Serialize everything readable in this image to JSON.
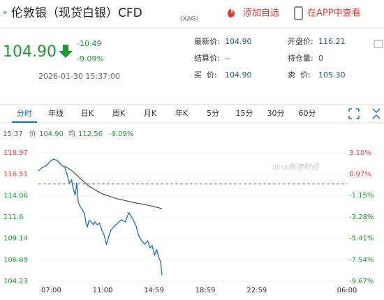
{
  "header": {
    "marker": "»",
    "title": "伦敦银（现货白银）CFD",
    "code": "(XAG)",
    "add_watch": "添加自选",
    "view_app": "在APP中查看"
  },
  "quote": {
    "price": "104.90",
    "change": "-10.49",
    "change_pct": "-9.09%",
    "datetime": "2026-01-30 15:37:00"
  },
  "stats": [
    {
      "label": "最新价:",
      "value": "104.90"
    },
    {
      "label": "开盘价:",
      "value": "116.21"
    },
    {
      "label": "结算价:",
      "value": "--"
    },
    {
      "label": "持仓量:",
      "value": "0"
    },
    {
      "label": "买  价:",
      "value": "104.90"
    },
    {
      "label": "卖  价:",
      "value": "105.30"
    }
  ],
  "tabs": [
    "分时",
    "年线",
    "日K",
    "周K",
    "月K",
    "年K",
    "5分",
    "15分",
    "30分",
    "60分"
  ],
  "info": {
    "time": "15:37",
    "price_label": "价",
    "price": "104.90",
    "avg_label": "均",
    "avg": "112.56",
    "pct": "-9.09%"
  },
  "chart_data": {
    "type": "line",
    "watermark": "sina新浪财经",
    "xlim": [
      -60,
      1380
    ],
    "xticks": [
      {
        "value": 0,
        "label": "07:00"
      },
      {
        "value": 240,
        "label": "11:00"
      },
      {
        "value": 479,
        "label": "14:59"
      },
      {
        "value": 719,
        "label": "18:59"
      },
      {
        "value": 959,
        "label": "22:59"
      },
      {
        "value": 1380,
        "label": "06:00"
      }
    ],
    "ylim": [
      104.23,
      118.97
    ],
    "yticks": [
      118.97,
      116.51,
      114.06,
      111.6,
      109.14,
      106.69,
      104.23
    ],
    "y2lim": [
      -9.67,
      3.1
    ],
    "y2ticks": [
      {
        "value": 3.1,
        "label": "3.10%"
      },
      {
        "value": 0.97,
        "label": "0.97%"
      },
      {
        "value": -1.15,
        "label": "-1.15%"
      },
      {
        "value": -3.28,
        "label": "-3.28%"
      },
      {
        "value": -5.41,
        "label": "-5.41%"
      },
      {
        "value": -7.54,
        "label": "-7.54%"
      },
      {
        "value": -9.67,
        "label": "-9.67%"
      }
    ],
    "prev_close": 115.39,
    "series": [
      {
        "color": "#1c6bc4",
        "x": [
          -60,
          -42,
          -25,
          -7,
          10,
          28,
          46,
          63,
          74,
          84,
          95,
          102,
          112,
          119,
          126,
          133,
          144,
          155,
          162,
          169,
          176,
          186,
          197,
          204,
          214,
          225,
          236,
          246,
          257,
          267,
          278,
          292,
          309,
          327,
          345,
          362,
          373,
          387,
          397,
          408,
          422,
          436,
          450,
          461,
          471,
          482,
          492,
          503,
          510,
          517
        ],
        "values": [
          116.89,
          117.29,
          117.45,
          117.93,
          118.25,
          118.09,
          117.61,
          117.29,
          116.49,
          115.52,
          115.84,
          114.88,
          114.08,
          115.52,
          113.28,
          112.88,
          112.48,
          112.0,
          110.88,
          110.48,
          111.2,
          111.04,
          110.72,
          111.04,
          110.72,
          110.88,
          110.08,
          109.6,
          108.47,
          109.27,
          110.08,
          110.48,
          110.88,
          111.28,
          111.04,
          112.08,
          111.68,
          111.04,
          110.48,
          109.44,
          108.87,
          108.47,
          108.87,
          108.07,
          108.31,
          107.27,
          107.83,
          106.87,
          106.47,
          104.9
        ]
      },
      {
        "color": "#555555",
        "x": [
          63,
          98,
          133,
          169,
          204,
          239,
          309,
          380,
          450,
          517
        ],
        "values": [
          117.45,
          116.89,
          116.09,
          115.28,
          114.72,
          114.24,
          113.68,
          113.28,
          112.96,
          112.56
        ]
      }
    ]
  }
}
